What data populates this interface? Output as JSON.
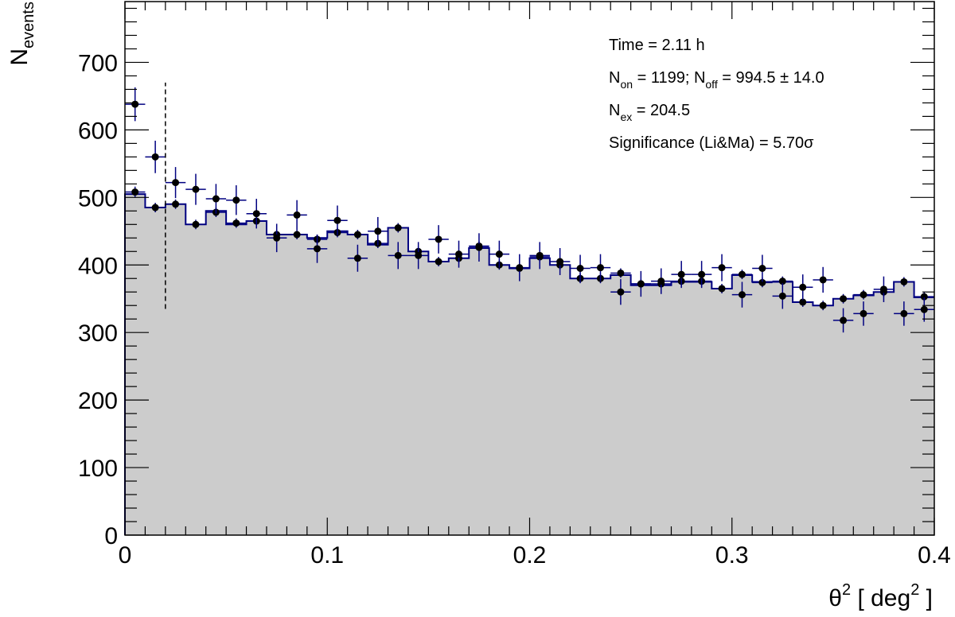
{
  "chart_data": {
    "type": "histogram",
    "xlabel": {
      "main": "θ",
      "sup": "2",
      "text": "[ deg",
      "sup2": "2",
      "end": "]"
    },
    "ylabel": {
      "main": "N",
      "sub": "events"
    },
    "xlim": [
      0,
      0.4
    ],
    "ylim": [
      0,
      790
    ],
    "x_ticks": [
      "0",
      "0.1",
      "0.2",
      "0.3",
      "0.4"
    ],
    "y_ticks": [
      "0",
      "100",
      "200",
      "300",
      "400",
      "500",
      "600",
      "700"
    ],
    "bin_width": 0.01,
    "cut_value": 0.02,
    "cut_range": [
      335,
      670
    ],
    "grid": false,
    "colors": {
      "off_fill": "#cccccc",
      "off_line": "#000080",
      "on_marker": "#000000",
      "on_error": "#000080"
    },
    "series": [
      {
        "kind": "off_histogram",
        "values": [
          505,
          485,
          490,
          460,
          480,
          460,
          465,
          445,
          445,
          440,
          450,
          445,
          430,
          455,
          420,
          405,
          410,
          425,
          400,
          395,
          410,
          400,
          380,
          380,
          385,
          370,
          370,
          375,
          375,
          365,
          385,
          375,
          375,
          345,
          340,
          350,
          355,
          360,
          375,
          352
        ],
        "points": [
          508,
          485,
          490,
          460,
          478,
          462,
          465,
          445,
          445,
          438,
          448,
          445,
          432,
          455,
          420,
          405,
          410,
          428,
          400,
          395,
          412,
          400,
          380,
          380,
          388,
          372,
          372,
          376,
          376,
          365,
          386,
          374,
          376,
          345,
          340,
          350,
          356,
          360,
          375,
          353
        ],
        "errors": [
          8,
          7,
          7,
          7,
          7,
          7,
          7,
          7,
          7,
          7,
          7,
          7,
          7,
          7,
          7,
          7,
          7,
          7,
          7,
          7,
          7,
          7,
          7,
          7,
          7,
          7,
          7,
          7,
          7,
          7,
          7,
          7,
          7,
          7,
          7,
          7,
          7,
          7,
          7,
          7
        ]
      },
      {
        "kind": "on_points",
        "x": [
          0.005,
          0.015,
          0.025,
          0.035,
          0.045,
          0.055,
          0.065,
          0.075,
          0.085,
          0.095,
          0.105,
          0.115,
          0.125,
          0.135,
          0.145,
          0.155,
          0.165,
          0.175,
          0.185,
          0.195,
          0.205,
          0.215,
          0.225,
          0.235,
          0.245,
          0.255,
          0.265,
          0.275,
          0.285,
          0.295,
          0.305,
          0.315,
          0.325,
          0.335,
          0.345,
          0.355,
          0.365,
          0.375,
          0.385,
          0.395
        ],
        "y": [
          638,
          560,
          522,
          512,
          498,
          496,
          476,
          440,
          474,
          424,
          466,
          410,
          450,
          414,
          414,
          438,
          416,
          426,
          416,
          396,
          414,
          405,
          395,
          396,
          360,
          372,
          376,
          386,
          386,
          396,
          356,
          395,
          354,
          367,
          378,
          318,
          328,
          364,
          328,
          334
        ],
        "errors": [
          25,
          24,
          23,
          23,
          22,
          22,
          22,
          21,
          22,
          21,
          22,
          20,
          21,
          20,
          20,
          21,
          20,
          21,
          20,
          20,
          20,
          20,
          20,
          20,
          19,
          19,
          19,
          20,
          20,
          20,
          19,
          20,
          19,
          19,
          19,
          18,
          18,
          19,
          18,
          18
        ]
      }
    ],
    "annotations": [
      {
        "parts": [
          {
            "t": "Time = 2.11 h"
          }
        ]
      },
      {
        "parts": [
          {
            "t": "N"
          },
          {
            "t": "on",
            "sub": true
          },
          {
            "t": " = 1199; N"
          },
          {
            "t": "off",
            "sub": true
          },
          {
            "t": " = 994.5 ± 14.0"
          }
        ]
      },
      {
        "parts": [
          {
            "t": "N"
          },
          {
            "t": "ex",
            "sub": true
          },
          {
            "t": " = 204.5"
          }
        ]
      },
      {
        "parts": [
          {
            "t": "Significance (Li&Ma) = 5.70σ"
          }
        ]
      }
    ]
  }
}
